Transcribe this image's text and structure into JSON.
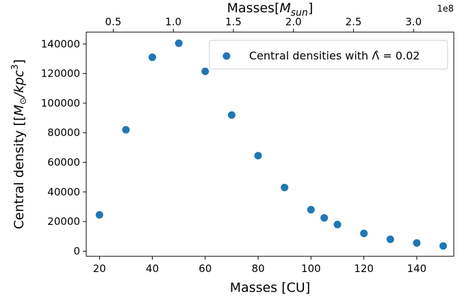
{
  "chart_data": {
    "type": "scatter",
    "x": [
      20,
      30,
      40,
      50,
      60,
      70,
      80,
      90,
      100,
      105,
      110,
      120,
      130,
      140,
      150
    ],
    "y": [
      24500,
      82000,
      131000,
      140500,
      121500,
      92000,
      64500,
      43000,
      28000,
      22500,
      18000,
      12000,
      8000,
      5500,
      3500
    ],
    "series": [
      {
        "name": "Central densities with Λ̂ = 0.02",
        "color": "#1f77b4"
      }
    ],
    "xlabel": "Masses [CU]",
    "ylabel_prefix": "Central density [[",
    "ylabel_math": "M",
    "ylabel_sub": "⊙",
    "ylabel_after": "/kpc",
    "ylabel_sup": "3",
    "ylabel_suffix": "]",
    "top_xlabel_prefix": "Masses[",
    "top_xlabel_math": "M",
    "top_xlabel_sub": "sun",
    "top_xlabel_suffix": "]",
    "top_offset": "1e8",
    "legend_prefix": "Central densities with ",
    "legend_math": "Λ̂ = 0.02",
    "legend_position": "upper right",
    "xlim": [
      15,
      154
    ],
    "ylim": [
      -3500,
      148000
    ],
    "xticks": [
      20,
      40,
      60,
      80,
      100,
      120,
      140
    ],
    "yticks": [
      0,
      20000,
      40000,
      60000,
      80000,
      100000,
      120000,
      140000
    ],
    "top_xticks": [
      0.5,
      1.0,
      1.5,
      2.0,
      2.5,
      3.0
    ],
    "top_xlim": [
      0.275,
      3.335
    ],
    "grid": false
  }
}
